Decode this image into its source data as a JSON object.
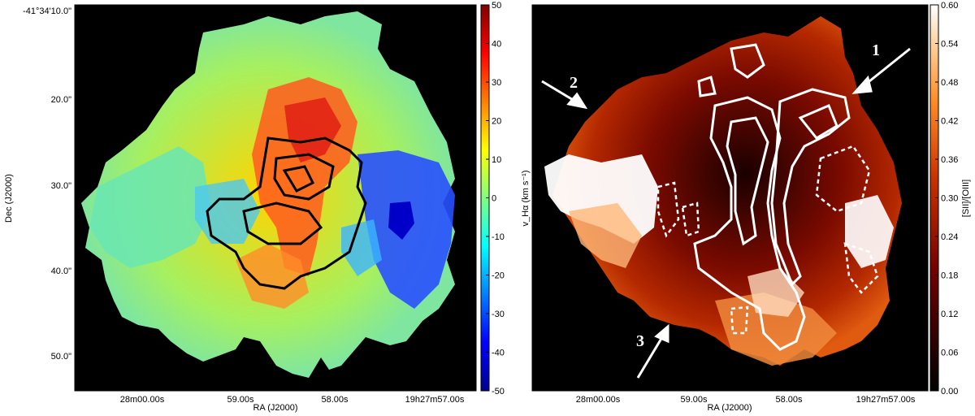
{
  "chart_data": [
    {
      "type": "heatmap",
      "title": "",
      "xlabel": "RA (J2000)",
      "ylabel": "Dec (J2000)",
      "x_ticks": [
        "28m00.00s",
        "59.00s",
        "58.00s",
        "19h27m57.00s"
      ],
      "y_ticks": [
        "-41°34'10.0\"",
        "20.0\"",
        "30.0\"",
        "40.0\"",
        "50.0\""
      ],
      "colorbar": {
        "label": "v_Hα (km s⁻¹)",
        "ticks": [
          50,
          40,
          30,
          20,
          10,
          0,
          -10,
          -20,
          -30,
          -40,
          -50
        ],
        "range": [
          -50,
          50
        ],
        "colormap": "jet",
        "colors": [
          "#00008f",
          "#0000ff",
          "#0080ff",
          "#00ffff",
          "#80ff80",
          "#ffff00",
          "#ff8000",
          "#ff0000",
          "#800000"
        ]
      },
      "contours": {
        "color": "#000000",
        "style": "solid"
      }
    },
    {
      "type": "heatmap",
      "title": "",
      "xlabel": "RA (J2000)",
      "ylabel": "",
      "x_ticks": [
        "28m00.00s",
        "59.00s",
        "58.00s",
        "19h27m57.00s"
      ],
      "colorbar": {
        "label": "[SII]/[OIII]",
        "ticks": [
          "0.60",
          "0.54",
          "0.48",
          "0.42",
          "0.36",
          "0.30",
          "0.24",
          "0.18",
          "0.12",
          "0.06",
          "0.00"
        ],
        "range": [
          0.0,
          0.6
        ],
        "colormap": "gist_heat",
        "colors": [
          "#000000",
          "#5a0000",
          "#b42800",
          "#ff6e0a",
          "#ffb464",
          "#ffffff"
        ]
      },
      "annotations": [
        {
          "label": "1",
          "direction": "pointing down-left toward north-west edge"
        },
        {
          "label": "2",
          "direction": "pointing down-right toward left edge"
        },
        {
          "label": "3",
          "direction": "pointing up-right toward bottom edge"
        }
      ],
      "contours": {
        "color": "#ffffff",
        "style": "solid and dashed"
      }
    }
  ]
}
